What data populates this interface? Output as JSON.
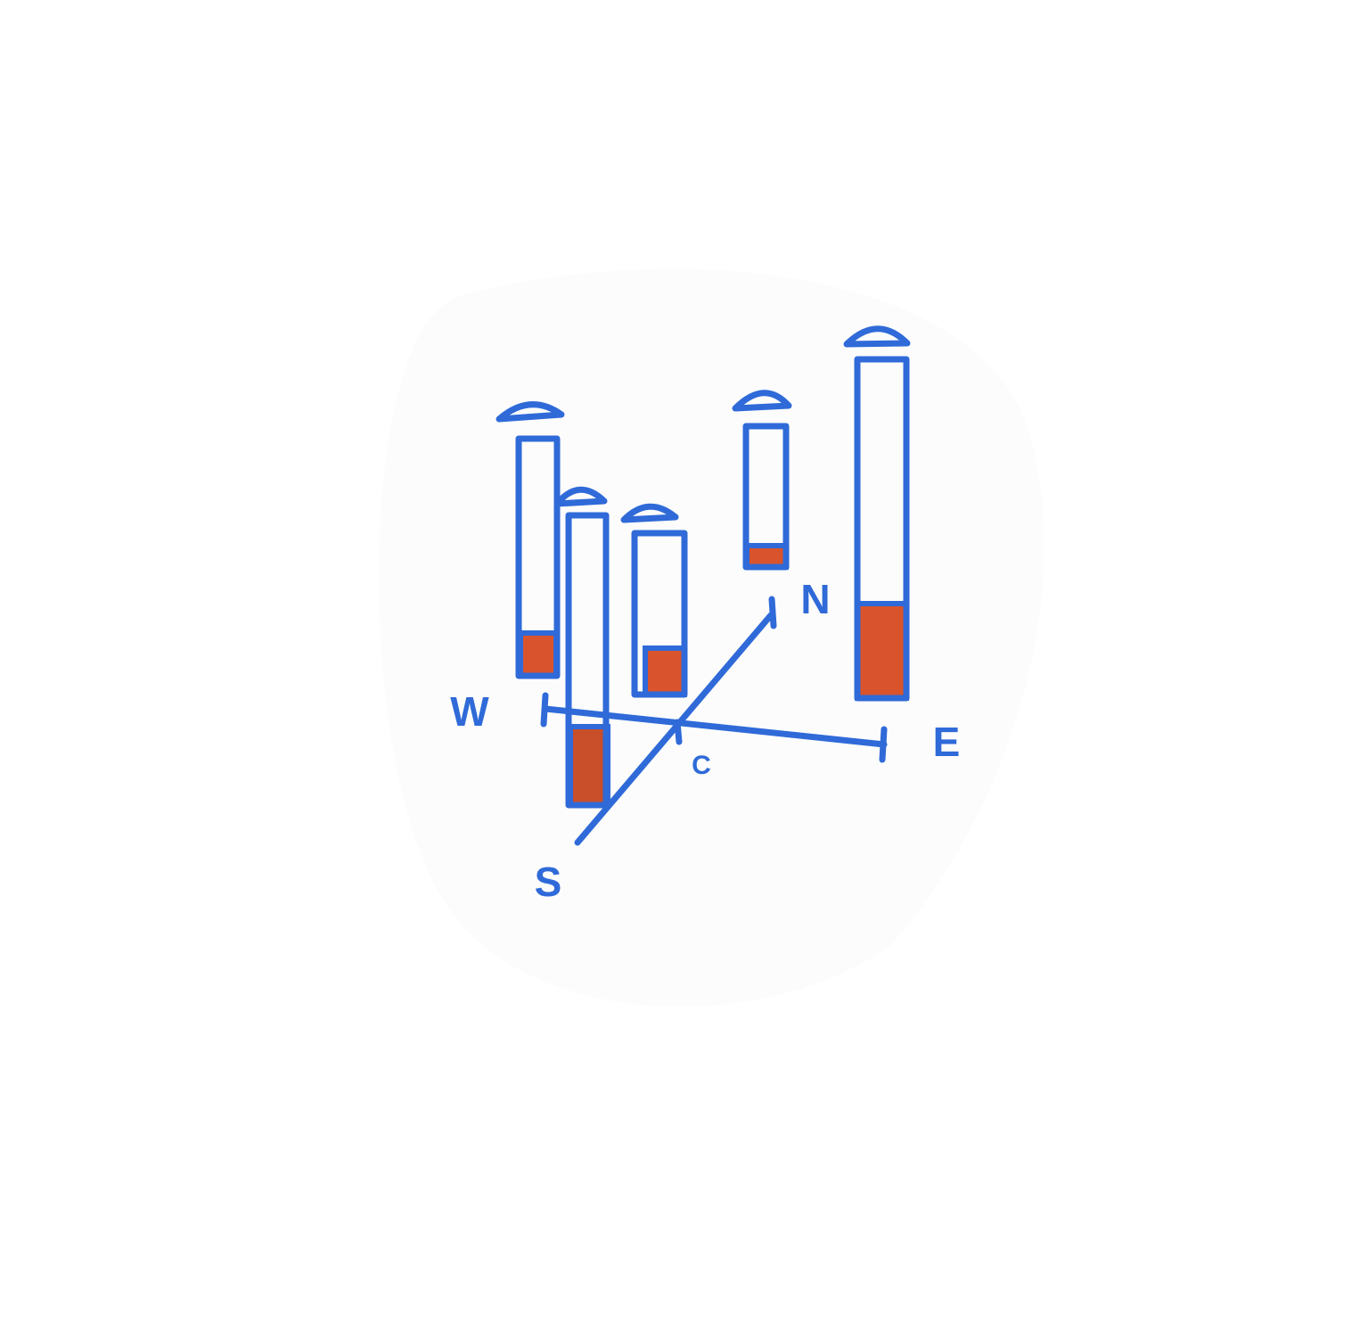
{
  "axis_labels": {
    "west": "W",
    "east": "E",
    "north": "N",
    "south": "S",
    "center": "C"
  }
}
